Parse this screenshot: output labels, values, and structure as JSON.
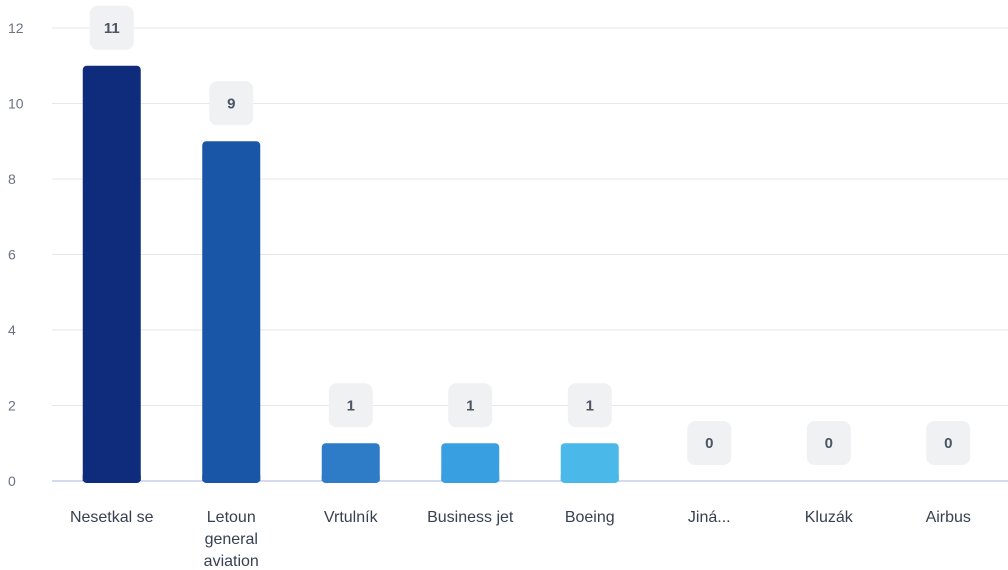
{
  "chart_data": {
    "type": "bar",
    "categories": [
      "Nesetkal se",
      "Letoun general aviation",
      "Vrtulník",
      "Business jet",
      "Boeing",
      "Jiná...",
      "Kluzák",
      "Airbus"
    ],
    "category_lines": [
      [
        "Nesetkal se"
      ],
      [
        "Letoun",
        "general",
        "aviation"
      ],
      [
        "Vrtulník"
      ],
      [
        "Business jet"
      ],
      [
        "Boeing"
      ],
      [
        "Jiná..."
      ],
      [
        "Kluzák"
      ],
      [
        "Airbus"
      ]
    ],
    "values": [
      11,
      9,
      1,
      1,
      1,
      0,
      0,
      0
    ],
    "bar_colors": [
      "#0f2b7c",
      "#1a56a8",
      "#2e7bc8",
      "#389fe0",
      "#4ab9ea",
      "#4ab9ea",
      "#4ab9ea",
      "#4ab9ea"
    ],
    "ylim": [
      0,
      12
    ],
    "yticks": [
      0,
      2,
      4,
      6,
      8,
      10,
      12
    ],
    "grid": true,
    "title": "",
    "xlabel": "",
    "ylabel": ""
  }
}
